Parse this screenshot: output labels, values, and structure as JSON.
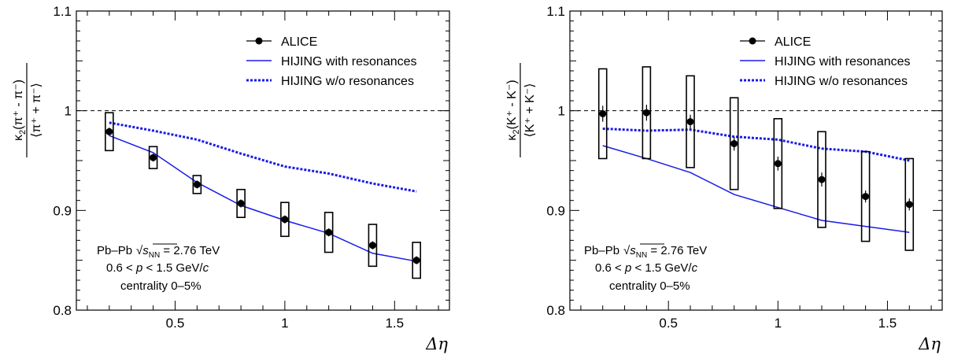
{
  "chart_data": [
    {
      "type": "scatter",
      "panel": "pions",
      "ylabel_kappa": "κ",
      "ylabel_sub": "2",
      "ylabel_num_content": "(π⁺ - π⁻)",
      "ylabel_den_content": "⟨π⁺ + π⁻⟩",
      "xlabel": "Δη",
      "xlim": [
        0.05,
        1.75
      ],
      "ylim": [
        0.8,
        1.1
      ],
      "xticks": [
        "0.5",
        "1",
        "1.5"
      ],
      "xtick_values": [
        0.5,
        1.0,
        1.5
      ],
      "yticks": [
        "0.8",
        "0.9",
        "1",
        "1.1"
      ],
      "ytick_values": [
        0.8,
        0.9,
        1.0,
        1.1
      ],
      "reference_line": 1.0,
      "legend_position": "top-right",
      "series": [
        {
          "name": "ALICE",
          "style": "markers",
          "x": [
            0.2,
            0.4,
            0.6,
            0.8,
            1.0,
            1.2,
            1.4,
            1.6
          ],
          "y": [
            0.979,
            0.953,
            0.926,
            0.907,
            0.891,
            0.878,
            0.865,
            0.85
          ],
          "stat_err": [
            0.004,
            0.004,
            0.004,
            0.004,
            0.004,
            0.004,
            0.004,
            0.004
          ],
          "syst_err": [
            0.019,
            0.011,
            0.009,
            0.014,
            0.017,
            0.02,
            0.021,
            0.018
          ]
        },
        {
          "name": "HIJING with resonances",
          "style": "solid",
          "x": [
            0.2,
            0.4,
            0.6,
            0.8,
            1.0,
            1.2,
            1.4,
            1.6
          ],
          "y": [
            0.975,
            0.958,
            0.928,
            0.905,
            0.89,
            0.877,
            0.857,
            0.849
          ]
        },
        {
          "name": "HIJING w/o resonances",
          "style": "dotted",
          "x": [
            0.2,
            0.4,
            0.6,
            0.8,
            1.0,
            1.2,
            1.4,
            1.6
          ],
          "y": [
            0.988,
            0.98,
            0.971,
            0.957,
            0.944,
            0.937,
            0.927,
            0.919
          ]
        }
      ],
      "annotations": {
        "system": "Pb–Pb",
        "sqrt_symbol": "√",
        "energy_var": "s",
        "energy_sub": "NN",
        "energy_value": " = 2.76 TeV",
        "momentum_prefix": "0.6 < ",
        "momentum_var": "p",
        "momentum_suffix": " < 1.5 GeV/",
        "momentum_unit_var": "c",
        "centrality": "centrality 0–5%"
      }
    },
    {
      "type": "scatter",
      "panel": "kaons",
      "ylabel_kappa": "κ",
      "ylabel_sub": "2",
      "ylabel_num_content": "(K⁺ - K⁻)",
      "ylabel_den_content": "⟨K⁺ + K⁻⟩",
      "xlabel": "Δη",
      "xlim": [
        0.05,
        1.75
      ],
      "ylim": [
        0.8,
        1.1
      ],
      "xticks": [
        "0.5",
        "1",
        "1.5"
      ],
      "xtick_values": [
        0.5,
        1.0,
        1.5
      ],
      "yticks": [
        "0.8",
        "0.9",
        "1",
        "1.1"
      ],
      "ytick_values": [
        0.8,
        0.9,
        1.0,
        1.1
      ],
      "reference_line": 1.0,
      "legend_position": "top-right",
      "series": [
        {
          "name": "ALICE",
          "style": "markers",
          "x": [
            0.2,
            0.4,
            0.6,
            0.8,
            1.0,
            1.2,
            1.4,
            1.6
          ],
          "y": [
            0.997,
            0.998,
            0.989,
            0.967,
            0.947,
            0.931,
            0.914,
            0.906
          ],
          "stat_err": [
            0.008,
            0.008,
            0.007,
            0.007,
            0.007,
            0.007,
            0.006,
            0.006
          ],
          "syst_err": [
            0.045,
            0.046,
            0.046,
            0.046,
            0.045,
            0.048,
            0.045,
            0.046
          ]
        },
        {
          "name": "HIJING with resonances",
          "style": "solid",
          "x": [
            0.2,
            0.4,
            0.6,
            0.8,
            1.0,
            1.2,
            1.4,
            1.6
          ],
          "y": [
            0.965,
            0.952,
            0.938,
            0.916,
            0.903,
            0.89,
            0.884,
            0.878
          ]
        },
        {
          "name": "HIJING w/o resonances",
          "style": "dotted",
          "x": [
            0.2,
            0.4,
            0.6,
            0.8,
            1.0,
            1.2,
            1.4,
            1.6
          ],
          "y": [
            0.982,
            0.98,
            0.981,
            0.974,
            0.971,
            0.962,
            0.959,
            0.95
          ]
        }
      ],
      "annotations": {
        "system": "Pb–Pb",
        "sqrt_symbol": "√",
        "energy_var": "s",
        "energy_sub": "NN",
        "energy_value": " = 2.76 TeV",
        "momentum_prefix": "0.6 < ",
        "momentum_var": "p",
        "momentum_suffix": " < 1.5 GeV/",
        "momentum_unit_var": "c",
        "centrality": "centrality 0–5%"
      }
    }
  ],
  "colors": {
    "hijing_line": "#1a1aeb",
    "alice_marker": "#000000",
    "reference_line": "#000000"
  }
}
